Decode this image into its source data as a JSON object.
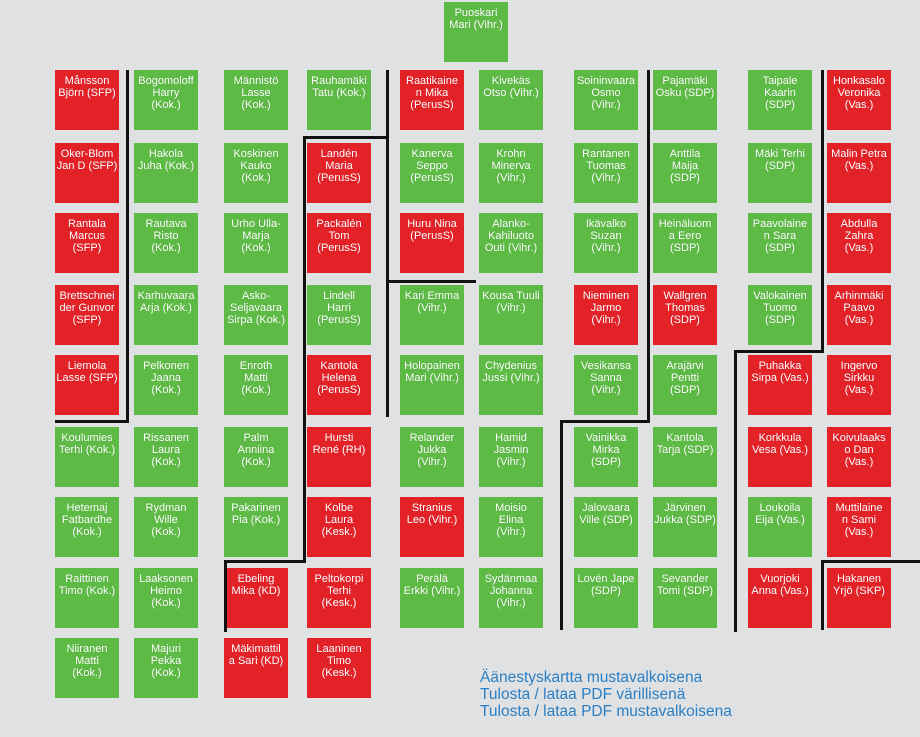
{
  "colors": {
    "red": "#e32228",
    "green": "#5dbb45",
    "link": "#2a7fc4"
  },
  "speaker": {
    "name": "Puoskari\nMari (Vihr.)",
    "color": "green"
  },
  "columns": [
    [
      {
        "name": "Månsson\nBjörn (SFP)",
        "color": "red"
      },
      {
        "name": "Oker-Blom\nJan D (SFP)",
        "color": "red"
      },
      {
        "name": "Rantala\nMarcus\n(SFP)",
        "color": "red"
      },
      {
        "name": "Brettschnei\nder Gunvor\n(SFP)",
        "color": "red"
      },
      {
        "name": "Liemola\nLasse (SFP)",
        "color": "red"
      },
      {
        "name": "Koulumies\nTerhi (Kok.)",
        "color": "green"
      },
      {
        "name": "Hetemaj\nFatbardhe\n(Kok.)",
        "color": "green"
      },
      {
        "name": "Raittinen\nTimo (Kok.)",
        "color": "green"
      },
      {
        "name": "Niiranen\nMatti\n(Kok.)",
        "color": "green"
      }
    ],
    [
      {
        "name": "Bogomoloff\nHarry\n(Kok.)",
        "color": "green"
      },
      {
        "name": "Hakola\nJuha (Kok.)",
        "color": "green"
      },
      {
        "name": "Rautava\nRisto\n(Kok.)",
        "color": "green"
      },
      {
        "name": "Karhuvaara\nArja (Kok.)",
        "color": "green"
      },
      {
        "name": "Pelkonen\nJaana\n(Kok.)",
        "color": "green"
      },
      {
        "name": "Rissanen\nLaura\n(Kok.)",
        "color": "green"
      },
      {
        "name": "Rydman\nWille\n(Kok.)",
        "color": "green"
      },
      {
        "name": "Laaksonen\nHeimo\n(Kok.)",
        "color": "green"
      },
      {
        "name": "Majuri\nPekka\n(Kok.)",
        "color": "green"
      }
    ],
    [
      {
        "name": "Männistö\nLasse\n(Kok.)",
        "color": "green"
      },
      {
        "name": "Koskinen\nKauko\n(Kok.)",
        "color": "green"
      },
      {
        "name": "Urho Ulla-\nMarja\n(Kok.)",
        "color": "green"
      },
      {
        "name": "Asko-\nSeljavaara\nSirpa (Kok.)",
        "color": "green"
      },
      {
        "name": "Enroth\nMatti\n(Kok.)",
        "color": "green"
      },
      {
        "name": "Palm\nAnniina\n(Kok.)",
        "color": "green"
      },
      {
        "name": "Pakarinen\nPia (Kok.)",
        "color": "green"
      },
      {
        "name": "Ebeling\nMika (KD)",
        "color": "red"
      },
      {
        "name": "Mäkimattil\na Sari (KD)",
        "color": "red"
      }
    ],
    [
      {
        "name": "Rauhamäki\nTatu (Kok.)",
        "color": "green"
      },
      {
        "name": "Landén\nMaria\n(PerusS)",
        "color": "red"
      },
      {
        "name": "Packalén\nTom\n(PerusS)",
        "color": "red"
      },
      {
        "name": "Lindell\nHarri\n(PerusS)",
        "color": "green"
      },
      {
        "name": "Kantola\nHelena\n(PerusS)",
        "color": "red"
      },
      {
        "name": "Hursti\nRené (RH)",
        "color": "red"
      },
      {
        "name": "Kolbe\nLaura\n(Kesk.)",
        "color": "red"
      },
      {
        "name": "Peltokorpi\nTerhi\n(Kesk.)",
        "color": "red"
      },
      {
        "name": "Laaninen\nTimo\n(Kesk.)",
        "color": "red"
      }
    ],
    [
      {
        "name": "Raatikaine\nn Mika\n(PerusS)",
        "color": "red"
      },
      {
        "name": "Kanerva\nSeppo\n(PerusS)",
        "color": "green"
      },
      {
        "name": "Huru Nina\n(PerusS)",
        "color": "red"
      },
      {
        "name": "Kari Emma\n(Vihr.)",
        "color": "green"
      },
      {
        "name": "Holopainen\nMari (Vihr.)",
        "color": "green"
      },
      {
        "name": "Relander\nJukka\n(Vihr.)",
        "color": "green"
      },
      {
        "name": "Stranius\nLeo (Vihr.)",
        "color": "red"
      },
      {
        "name": "Perälä\nErkki (Vihr.)",
        "color": "green"
      }
    ],
    [
      {
        "name": "Kivekäs\nOtso (Vihr.)",
        "color": "green"
      },
      {
        "name": "Krohn\nMinerva\n(Vihr.)",
        "color": "green"
      },
      {
        "name": "Alanko-\nKahiluoto\nOuti (Vihr.)",
        "color": "green"
      },
      {
        "name": "Kousa Tuuli\n(Vihr.)",
        "color": "green"
      },
      {
        "name": "Chydenius\nJussi (Vihr.)",
        "color": "green"
      },
      {
        "name": "Hamid\nJasmin\n(Vihr.)",
        "color": "green"
      },
      {
        "name": "Moisio\nElina\n(Vihr.)",
        "color": "green"
      },
      {
        "name": "Sydänmaa\nJohanna\n(Vihr.)",
        "color": "green"
      }
    ],
    [
      {
        "name": "Soininvaara\nOsmo\n(Vihr.)",
        "color": "green"
      },
      {
        "name": "Rantanen\nTuomas\n(Vihr.)",
        "color": "green"
      },
      {
        "name": "Ikävalko\nSuzan\n(Vihr.)",
        "color": "green"
      },
      {
        "name": "Nieminen\nJarmo\n(Vihr.)",
        "color": "red"
      },
      {
        "name": "Vesikansa\nSanna\n(Vihr.)",
        "color": "green"
      },
      {
        "name": "Vainikka\nMirka\n(SDP)",
        "color": "green"
      },
      {
        "name": "Jalovaara\nVille (SDP)",
        "color": "green"
      },
      {
        "name": "Lovén Jape\n(SDP)",
        "color": "green"
      }
    ],
    [
      {
        "name": "Pajamäki\nOsku (SDP)",
        "color": "green"
      },
      {
        "name": "Anttila\nMaija\n(SDP)",
        "color": "green"
      },
      {
        "name": "Heinäluom\na Eero\n(SDP)",
        "color": "green"
      },
      {
        "name": "Wallgren\nThomas\n(SDP)",
        "color": "red"
      },
      {
        "name": "Arajärvi\nPentti\n(SDP)",
        "color": "green"
      },
      {
        "name": "Kantola\nTarja (SDP)",
        "color": "green"
      },
      {
        "name": "Järvinen\nJukka (SDP)",
        "color": "green"
      },
      {
        "name": "Sevander\nTomi (SDP)",
        "color": "green"
      }
    ],
    [
      {
        "name": "Taipale\nKaarin\n(SDP)",
        "color": "green"
      },
      {
        "name": "Mäki Terhi\n(SDP)",
        "color": "green"
      },
      {
        "name": "Paavolaine\nn Sara\n(SDP)",
        "color": "green"
      },
      {
        "name": "Valokainen\nTuomo\n(SDP)",
        "color": "green"
      },
      {
        "name": "Puhakka\nSirpa (Vas.)",
        "color": "red"
      },
      {
        "name": "Korkkula\nVesa (Vas.)",
        "color": "red"
      },
      {
        "name": "Loukoila\nEija (Vas.)",
        "color": "green"
      },
      {
        "name": "Vuorjoki\nAnna (Vas.)",
        "color": "red"
      }
    ],
    [
      {
        "name": "Honkasalo\nVeronika\n(Vas.)",
        "color": "red"
      },
      {
        "name": "Malin Petra\n(Vas.)",
        "color": "red"
      },
      {
        "name": "Abdulla\nZahra\n(Vas.)",
        "color": "red"
      },
      {
        "name": "Arhinmäki\nPaavo\n(Vas.)",
        "color": "red"
      },
      {
        "name": "Ingervo\nSirkku\n(Vas.)",
        "color": "red"
      },
      {
        "name": "Koivulaaks\no Dan\n(Vas.)",
        "color": "red"
      },
      {
        "name": "Muttilaine\nn Sami\n(Vas.)",
        "color": "red"
      },
      {
        "name": "Hakanen\nYrjö (SKP)",
        "color": "red"
      }
    ]
  ],
  "links": [
    "Äänestyskartta mustavalkoisena",
    "Tulosta / lataa PDF värillisenä",
    "Tulosta / lataa PDF mustavalkoisena"
  ]
}
